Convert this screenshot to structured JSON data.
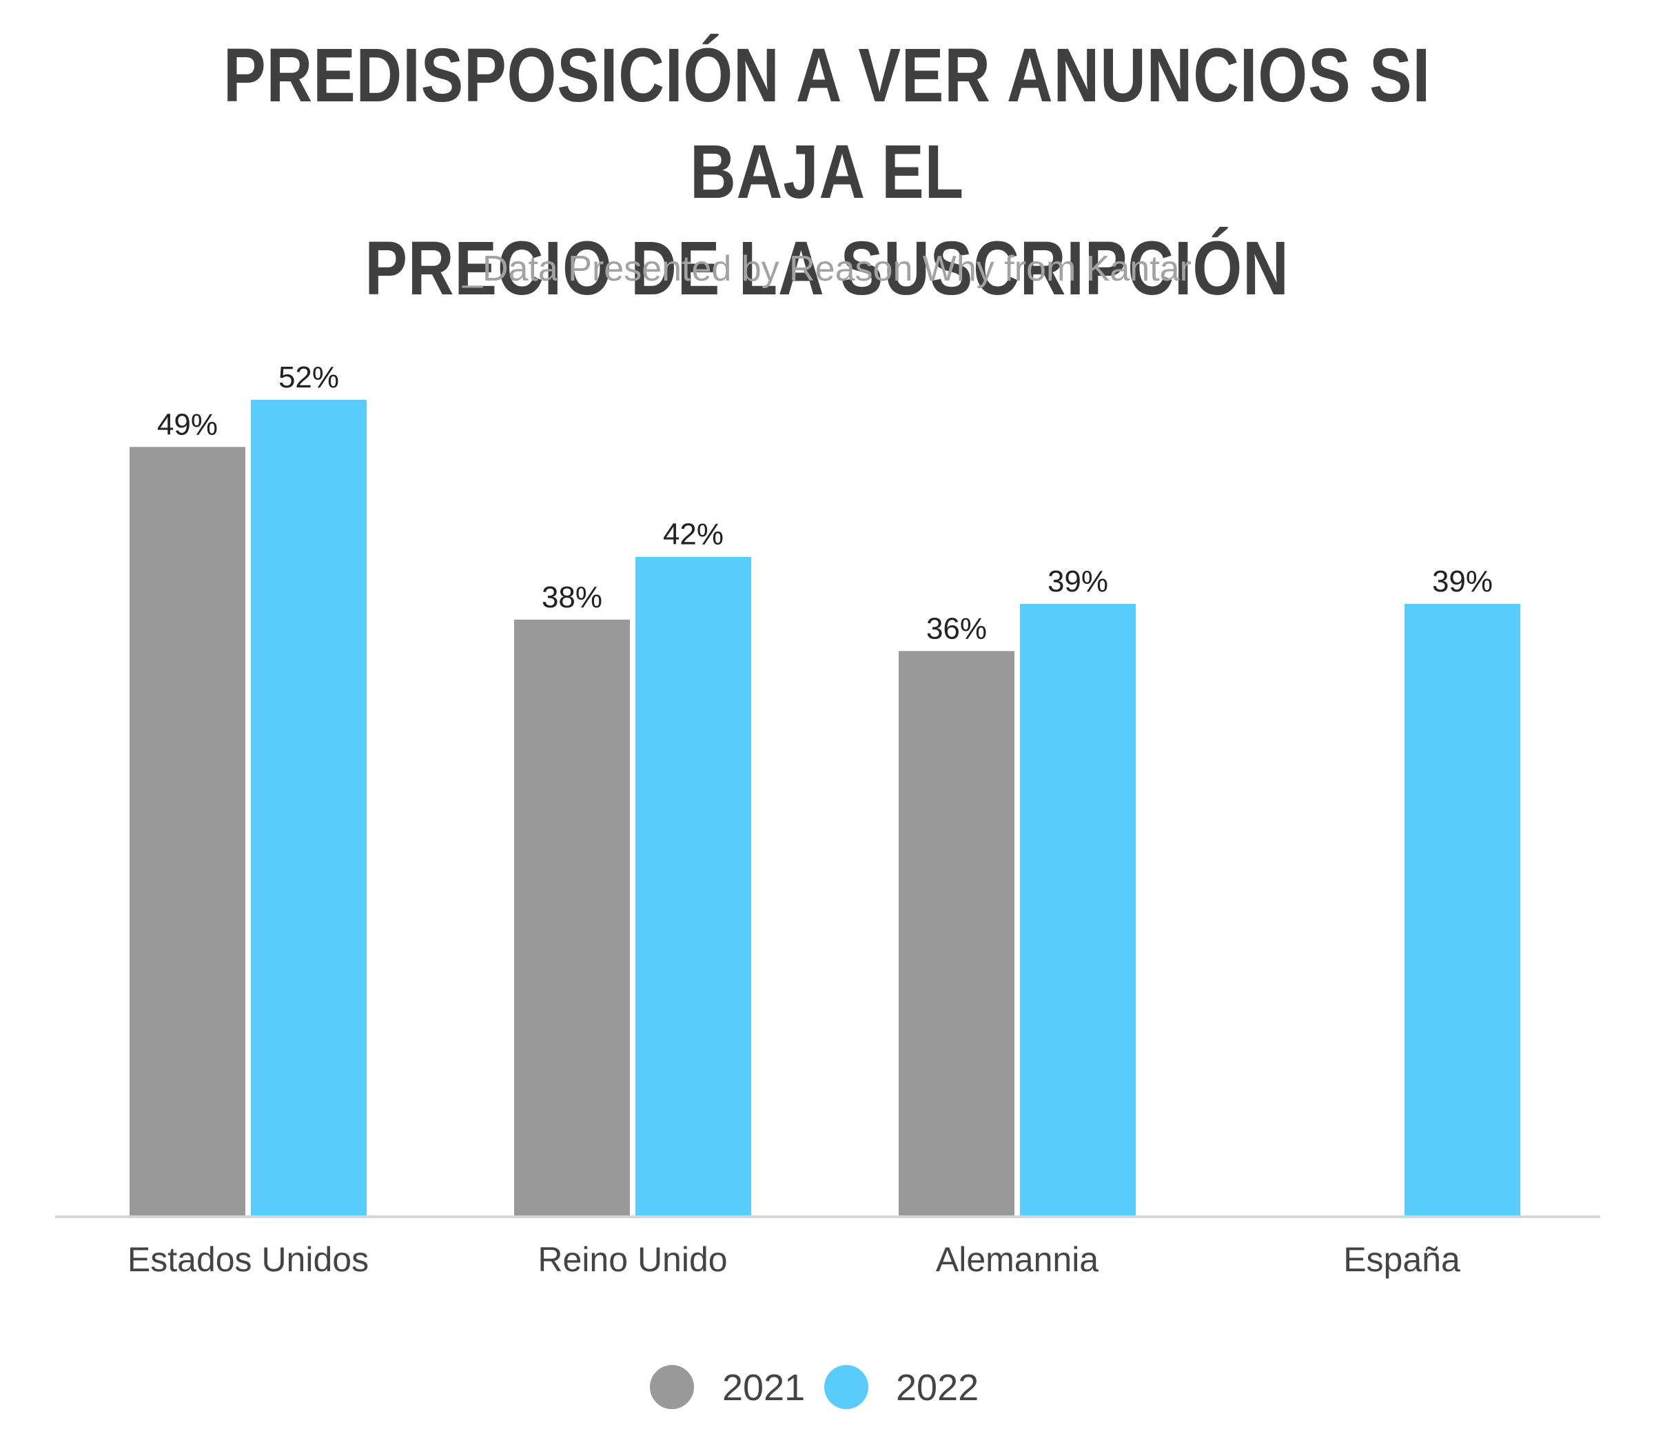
{
  "chart_data": {
    "type": "bar",
    "title_lines": [
      "PREDISPOSICIÓN A VER ANUNCIOS SI BAJA EL",
      "PRECIO DE LA SUSCRIPCIÓN"
    ],
    "subtitle": "_Data Presented by Reason Why from Kantar",
    "categories": [
      "Estados Unidos",
      "Reino Unido",
      "Alemannia",
      "España"
    ],
    "series": [
      {
        "name": "2021",
        "color": "#999999",
        "values": [
          49,
          38,
          36,
          null
        ],
        "labels": [
          "49%",
          "38%",
          "36%",
          ""
        ]
      },
      {
        "name": "2022",
        "color": "#5ACCFB",
        "values": [
          52,
          42,
          39,
          39
        ],
        "labels": [
          "52%",
          "42%",
          "39%",
          "39%"
        ]
      }
    ],
    "ylim": [
      0,
      52
    ],
    "grid": false,
    "legend_position": "bottom-center"
  }
}
